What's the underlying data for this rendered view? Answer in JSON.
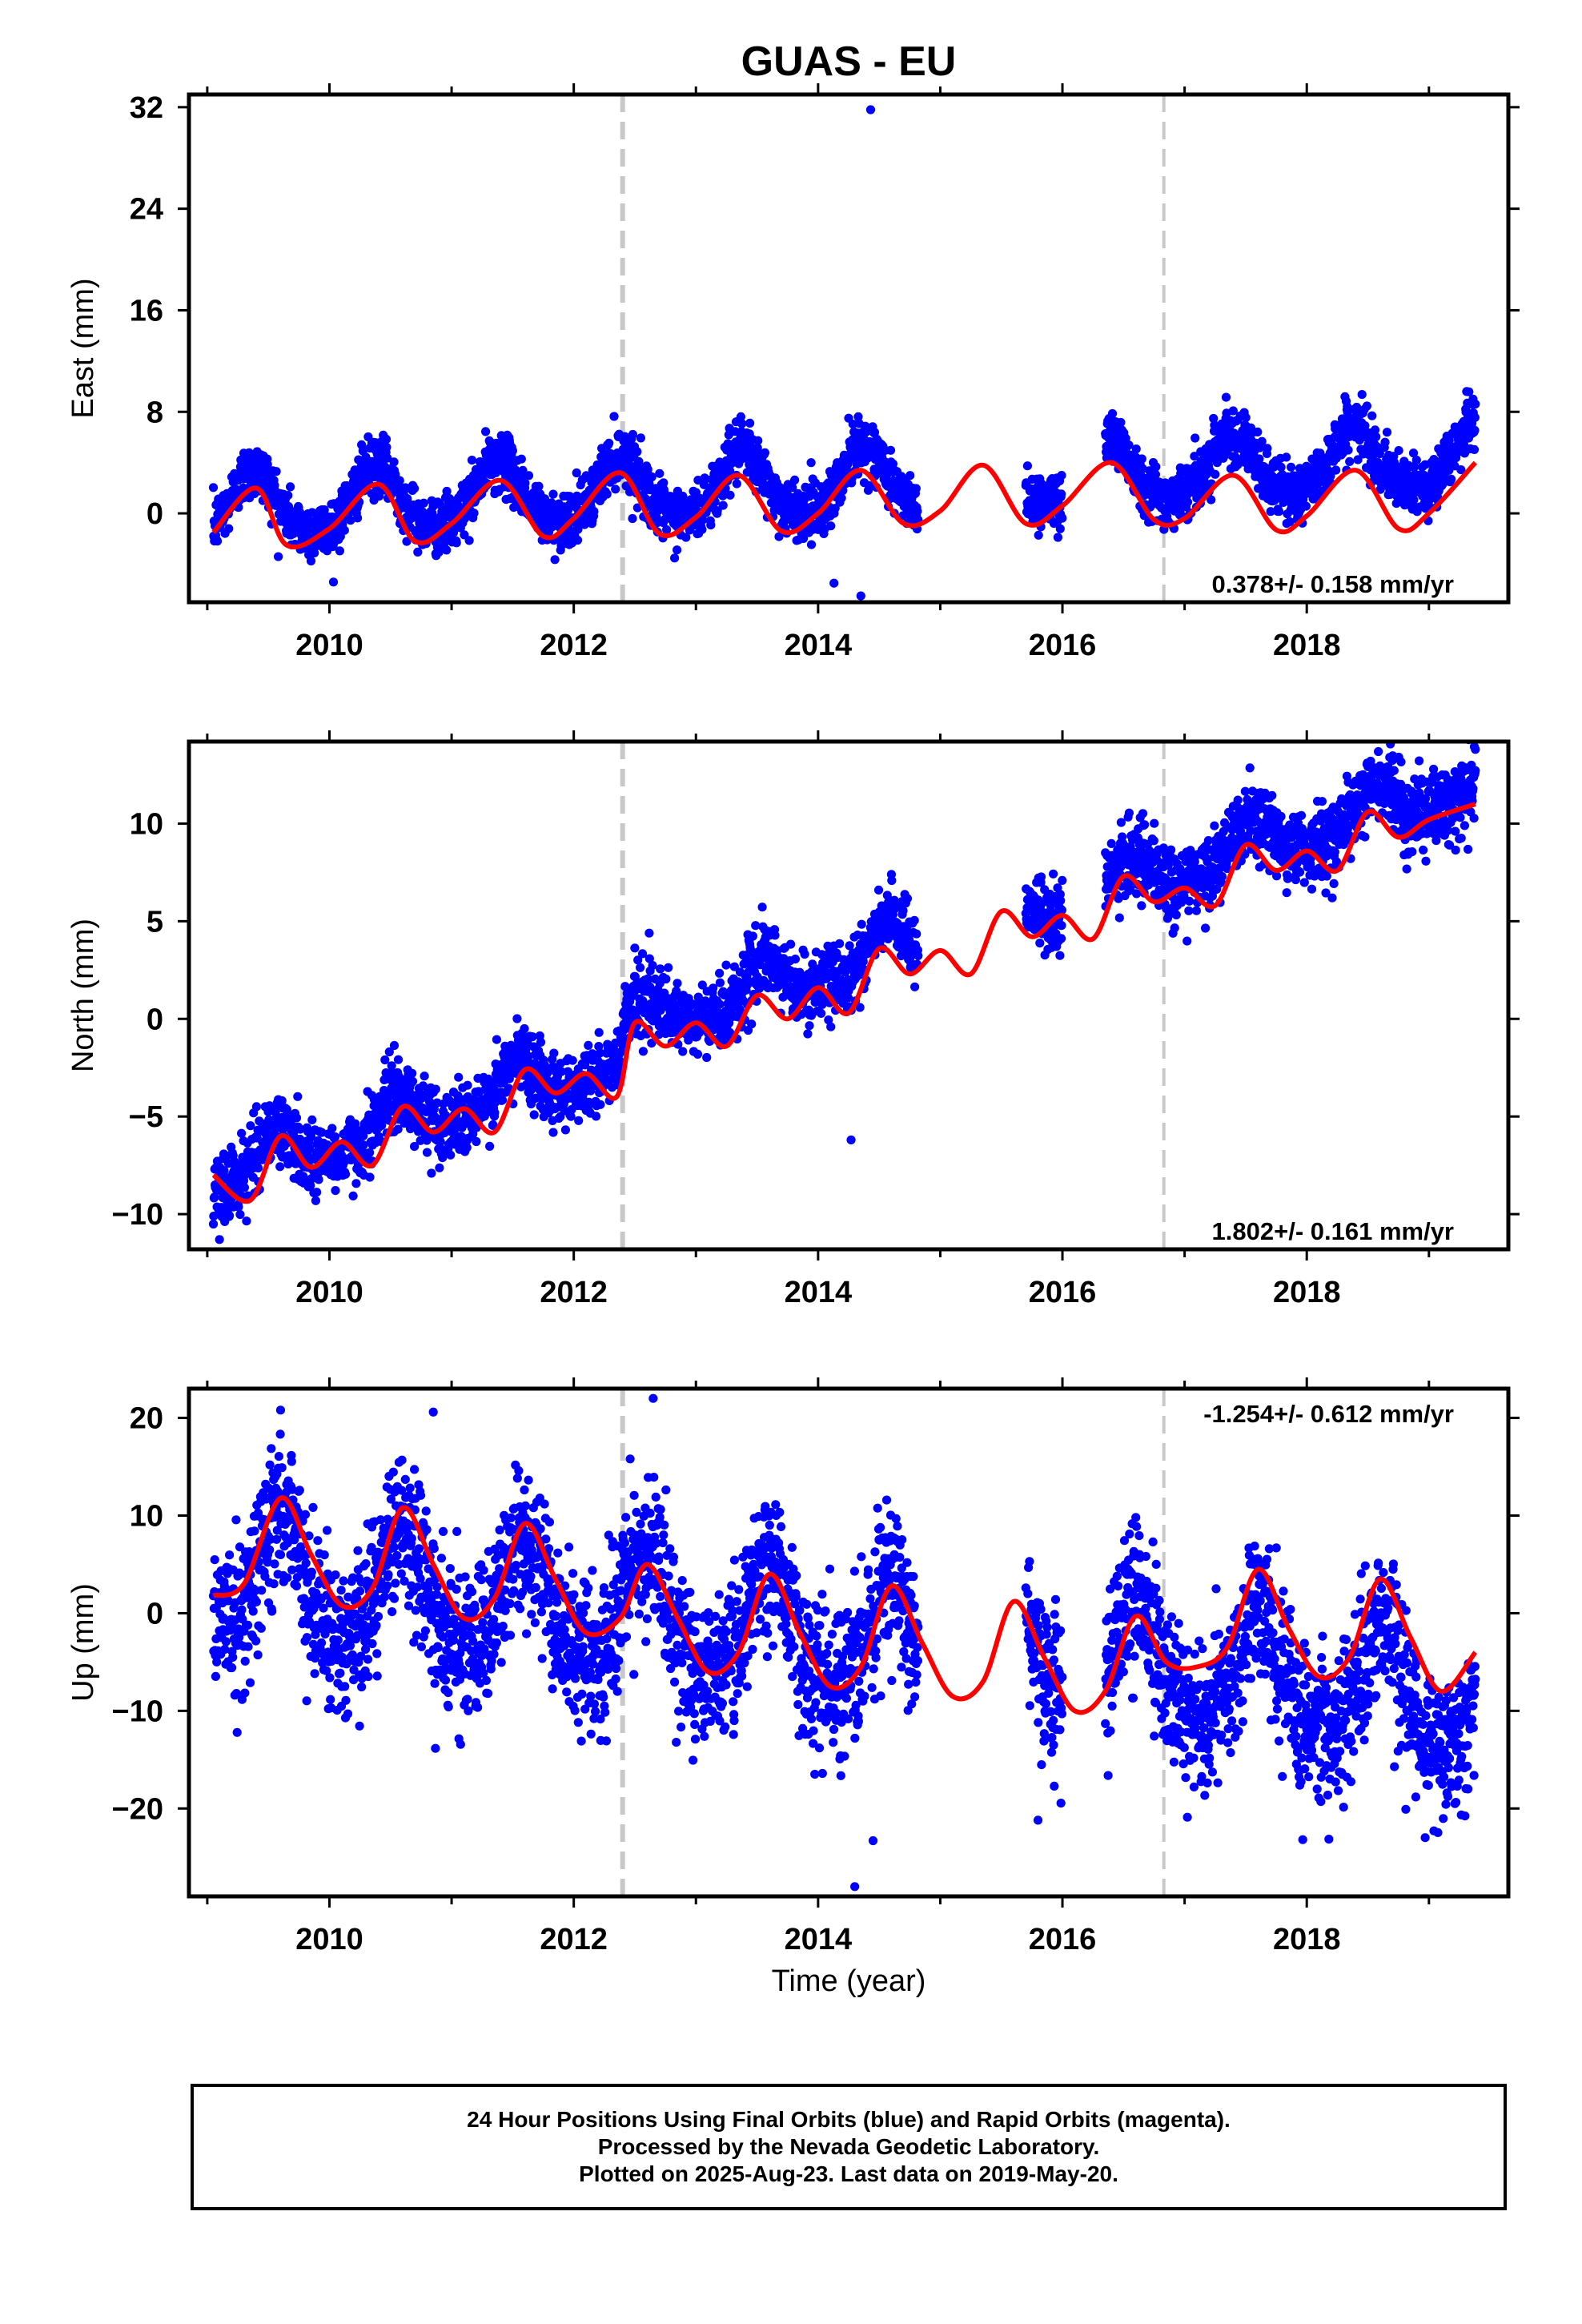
{
  "figure": {
    "title": "GUAS - EU",
    "xlabel": "Time (year)",
    "colors": {
      "data": "#0000ff",
      "model": "#ff0000",
      "event_line": "#c8c8c8",
      "axes": "#000000"
    }
  },
  "footer": {
    "line1": "24 Hour Positions Using Final Orbits (blue) and Rapid Orbits (magenta).",
    "line2": "Processed by the Nevada Geodetic Laboratory.",
    "line3": "Plotted on 2025-Aug-23. Last data on 2019-May-20."
  },
  "chart_data": [
    {
      "type": "scatter",
      "panel": "east",
      "title": "GUAS - EU",
      "ylabel": "East (mm)",
      "xlabel": "",
      "xlim": [
        2008.85,
        2019.65
      ],
      "ylim": [
        -7,
        33
      ],
      "xticks": [
        2010,
        2012,
        2014,
        2016,
        2018
      ],
      "yticks": [
        0,
        8,
        16,
        24,
        32
      ],
      "yticklabels": [
        "0",
        "8",
        "16",
        "24",
        "32"
      ],
      "event_lines": [
        2012.4,
        2016.83
      ],
      "rate_text": "0.378+/- 0.158 mm/yr",
      "rate_placement": "bottom-right",
      "data_start": 2009.05,
      "data_end": 2019.38,
      "gaps": [
        [
          2014.9,
          2015.7
        ],
        [
          2016.0,
          2016.35
        ]
      ],
      "series": [
        {
          "kind": "points",
          "color": "#0000ff",
          "model": {
            "offset": 0.4,
            "rate": 0.378,
            "amplitude": 2.5,
            "phase_peak": 0.38,
            "semi_amplitude": 0.4,
            "jump_2012_4": 0.0,
            "jump_2016_83": 0.0
          },
          "scatter_sigma": 1.1,
          "outliers": [
            {
              "x": 2014.43,
              "y": 31.8
            },
            {
              "x": 2014.35,
              "y": -6.5
            },
            {
              "x": 2014.13,
              "y": -5.5
            },
            {
              "x": 2014.25,
              "y": 7.5
            }
          ]
        },
        {
          "kind": "curve",
          "color": "#ff0000",
          "fit_points_x": [
            2009.05,
            2009.4,
            2009.65,
            2010.0,
            2010.4,
            2010.7,
            2011.0,
            2011.4,
            2011.75,
            2012.0,
            2012.38,
            2012.7,
            2013.0,
            2013.35,
            2013.7,
            2014.0,
            2014.35,
            2014.7,
            2015.0,
            2015.35,
            2015.7,
            2016.0,
            2016.4,
            2016.75,
            2017.0,
            2017.4,
            2017.75,
            2018.0,
            2018.4,
            2018.75,
            2019.0,
            2019.38
          ],
          "fit_points_y": [
            -1.5,
            2.0,
            -2.5,
            -1.2,
            2.3,
            -2.2,
            -0.8,
            2.6,
            -1.8,
            -0.4,
            3.2,
            -1.6,
            -0.3,
            3.0,
            -1.4,
            0.0,
            3.4,
            -0.8,
            0.2,
            3.8,
            -0.8,
            0.6,
            4.0,
            -0.5,
            -0.4,
            3.0,
            -1.3,
            -0.2,
            3.4,
            -1.2,
            0.0,
            4.0
          ]
        }
      ]
    },
    {
      "type": "scatter",
      "panel": "north",
      "ylabel": "North (mm)",
      "xlabel": "",
      "xlim": [
        2008.85,
        2019.65
      ],
      "ylim": [
        -11.8,
        14.2
      ],
      "xticks": [
        2010,
        2012,
        2014,
        2016,
        2018
      ],
      "yticks": [
        -10,
        -5,
        0,
        5,
        10
      ],
      "yticklabels": [
        "−10",
        "−5",
        "0",
        "5",
        "10"
      ],
      "event_lines": [
        2012.4,
        2016.83
      ],
      "rate_text": "1.802+/- 0.161 mm/yr",
      "rate_placement": "bottom-right",
      "data_start": 2009.05,
      "data_end": 2019.38,
      "gaps": [
        [
          2014.9,
          2015.7
        ],
        [
          2016.0,
          2016.35
        ]
      ],
      "series": [
        {
          "kind": "points",
          "color": "#0000ff",
          "model": {
            "offset": -8.0,
            "rate": 1.802,
            "amplitude": 1.1,
            "phase_peak": 0.55,
            "semi_amplitude": 0.3,
            "jump_2012_4": 1.5,
            "jump_2016_83": 0.0
          },
          "scatter_sigma": 0.9,
          "outliers": [
            {
              "x": 2014.27,
              "y": -6.2
            },
            {
              "x": 2009.1,
              "y": -11.3
            },
            {
              "x": 2014.6,
              "y": 7.4
            },
            {
              "x": 2019.38,
              "y": 13.8
            }
          ]
        },
        {
          "kind": "curve",
          "color": "#ff0000",
          "fit_points_x": [
            2009.05,
            2009.35,
            2009.6,
            2009.85,
            2010.1,
            2010.35,
            2010.6,
            2010.85,
            2011.1,
            2011.35,
            2011.6,
            2011.85,
            2012.1,
            2012.35,
            2012.5,
            2012.75,
            2013.0,
            2013.25,
            2013.5,
            2013.75,
            2014.0,
            2014.25,
            2014.5,
            2014.75,
            2015.0,
            2015.25,
            2015.5,
            2015.75,
            2016.0,
            2016.25,
            2016.5,
            2016.75,
            2017.0,
            2017.25,
            2017.5,
            2017.75,
            2018.0,
            2018.25,
            2018.5,
            2018.75,
            2019.0,
            2019.38
          ],
          "fit_points_y": [
            -8.0,
            -9.3,
            -6.0,
            -7.6,
            -6.3,
            -7.5,
            -4.5,
            -5.8,
            -4.6,
            -5.8,
            -2.6,
            -3.8,
            -2.8,
            -4.0,
            -0.2,
            -1.4,
            -0.2,
            -1.4,
            1.2,
            0.0,
            1.6,
            0.3,
            3.6,
            2.3,
            3.5,
            2.3,
            5.5,
            4.2,
            5.3,
            4.1,
            7.3,
            6.0,
            6.7,
            5.8,
            8.9,
            7.6,
            8.6,
            7.6,
            10.6,
            9.3,
            10.2,
            11.0
          ]
        }
      ]
    },
    {
      "type": "scatter",
      "panel": "up",
      "ylabel": "Up (mm)",
      "xlabel": "Time (year)",
      "xlim": [
        2008.85,
        2019.65
      ],
      "ylim": [
        -29,
        23
      ],
      "xticks": [
        2010,
        2012,
        2014,
        2016,
        2018
      ],
      "yticks": [
        -20,
        -10,
        0,
        10,
        20
      ],
      "yticklabels": [
        "−20",
        "−10",
        "0",
        "10",
        "20"
      ],
      "event_lines": [
        2012.4,
        2016.83
      ],
      "rate_text": "-1.254+/- 0.612 mm/yr",
      "rate_placement": "top-right",
      "data_start": 2009.05,
      "data_end": 2019.38,
      "gaps": [
        [
          2014.9,
          2015.7
        ],
        [
          2016.0,
          2016.35
        ]
      ],
      "series": [
        {
          "kind": "points",
          "color": "#0000ff",
          "model": {
            "offset": 4.0,
            "rate": -1.254,
            "amplitude": 6.0,
            "phase_peak": 0.6,
            "semi_amplitude": 1.2,
            "jump_2012_4": 0.0,
            "jump_2016_83": 0.0
          },
          "scatter_sigma": 3.8,
          "outliers": [
            {
              "x": 2012.65,
              "y": 22.0
            },
            {
              "x": 2014.3,
              "y": -28.0
            },
            {
              "x": 2014.45,
              "y": -23.3
            },
            {
              "x": 2015.8,
              "y": -21.2
            },
            {
              "x": 2009.6,
              "y": 20.8
            },
            {
              "x": 2010.85,
              "y": 20.6
            }
          ]
        },
        {
          "kind": "curve",
          "color": "#ff0000",
          "fit_points_x": [
            2009.05,
            2009.3,
            2009.6,
            2009.85,
            2010.1,
            2010.35,
            2010.6,
            2010.85,
            2011.1,
            2011.35,
            2011.6,
            2011.85,
            2012.1,
            2012.38,
            2012.6,
            2012.85,
            2013.1,
            2013.35,
            2013.6,
            2013.85,
            2014.1,
            2014.35,
            2014.6,
            2014.85,
            2015.1,
            2015.35,
            2015.6,
            2015.85,
            2016.1,
            2016.35,
            2016.6,
            2016.85,
            2017.1,
            2017.35,
            2017.6,
            2017.85,
            2018.1,
            2018.35,
            2018.6,
            2018.85,
            2019.1,
            2019.38
          ],
          "fit_points_y": [
            1.8,
            3.0,
            11.8,
            6.0,
            0.8,
            2.5,
            10.8,
            5.0,
            -0.5,
            1.5,
            9.2,
            3.5,
            -2.0,
            -0.5,
            5.0,
            -0.5,
            -6.0,
            -4.0,
            4.0,
            -2.0,
            -7.5,
            -5.5,
            2.8,
            -3.0,
            -8.5,
            -7.0,
            1.2,
            -4.5,
            -10.0,
            -8.0,
            -0.3,
            -5.0,
            -5.5,
            -3.5,
            4.5,
            -1.5,
            -6.5,
            -4.5,
            3.5,
            -2.5,
            -8.0,
            -4.0
          ]
        }
      ]
    }
  ]
}
